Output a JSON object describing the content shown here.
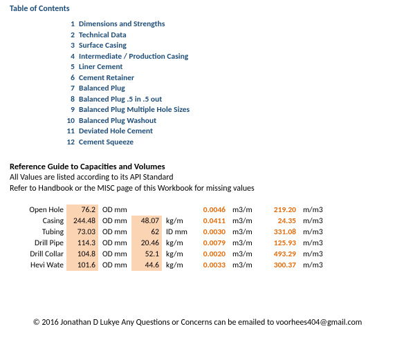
{
  "title": "Table of Contents",
  "toc": [
    {
      "n": "1",
      "t": "Dimensions and Strengths"
    },
    {
      "n": "2",
      "t": "Technical Data"
    },
    {
      "n": "3",
      "t": "Surface Casing"
    },
    {
      "n": "4",
      "t": "Intermediate / Production Casing"
    },
    {
      "n": "5",
      "t": "Liner Cement"
    },
    {
      "n": "6",
      "t": "Cement Retainer"
    },
    {
      "n": "7",
      "t": "Balanced Plug"
    },
    {
      "n": "8",
      "t": "Balanced Plug .5 in .5 out"
    },
    {
      "n": "9",
      "t": "Balanced Plug Multiple Hole Sizes"
    },
    {
      "n": "10",
      "t": "Balanced Plug Washout"
    },
    {
      "n": "11",
      "t": "Deviated Hole Cement"
    },
    {
      "n": "12",
      "t": "Cement Squeeze"
    }
  ],
  "ref": {
    "heading": "Reference Guide to Capacities and Volumes",
    "line1": "All Values are listed according to its API Standard",
    "line2": "Refer to Handbook or the MISC page of this Workbook for missing values"
  },
  "rows": [
    {
      "label": "Open Hole",
      "vA": "76.2",
      "uA": "OD mm",
      "vB": "",
      "uB": "",
      "bold": false,
      "vC": "0.0046",
      "uC": "m3/m",
      "vD": "219.20",
      "uD": "m/m3"
    },
    {
      "label": "Casing",
      "vA": "244.48",
      "uA": "OD mm",
      "vB": "48.07",
      "uB": "kg/m",
      "bold": true,
      "vC": "0.0411",
      "uC": "m3/m",
      "vD": "24.35",
      "uD": "m/m3"
    },
    {
      "label": "Tubing",
      "vA": "73.03",
      "uA": "OD mm",
      "vB": "62",
      "uB": "ID mm",
      "bold": true,
      "vC": "0.0030",
      "uC": "m3/m",
      "vD": "331.08",
      "uD": "m/m3"
    },
    {
      "label": "Drill Pipe",
      "vA": "114.3",
      "uA": "OD mm",
      "vB": "20.46",
      "uB": "kg/m",
      "bold": true,
      "vC": "0.0079",
      "uC": "m3/m",
      "vD": "125.93",
      "uD": "m/m3"
    },
    {
      "label": "Drill Collar",
      "vA": "104.8",
      "uA": "OD mm",
      "vB": "52.1",
      "uB": "kg/m",
      "bold": true,
      "vC": "0.0020",
      "uC": "m3/m",
      "vD": "493.29",
      "uD": "m/m3"
    },
    {
      "label": "Hevi Wate",
      "vA": "101.6",
      "uA": "OD mm",
      "vB": "44.6",
      "uB": "kg/m",
      "bold": true,
      "vC": "0.0033",
      "uC": "m3/m",
      "vD": "300.37",
      "uD": "m/m3"
    }
  ],
  "footer": "© 2016 Jonathan D Lukye  Any Questions or Concerns can be emailed to voorhees404@gmail.com"
}
